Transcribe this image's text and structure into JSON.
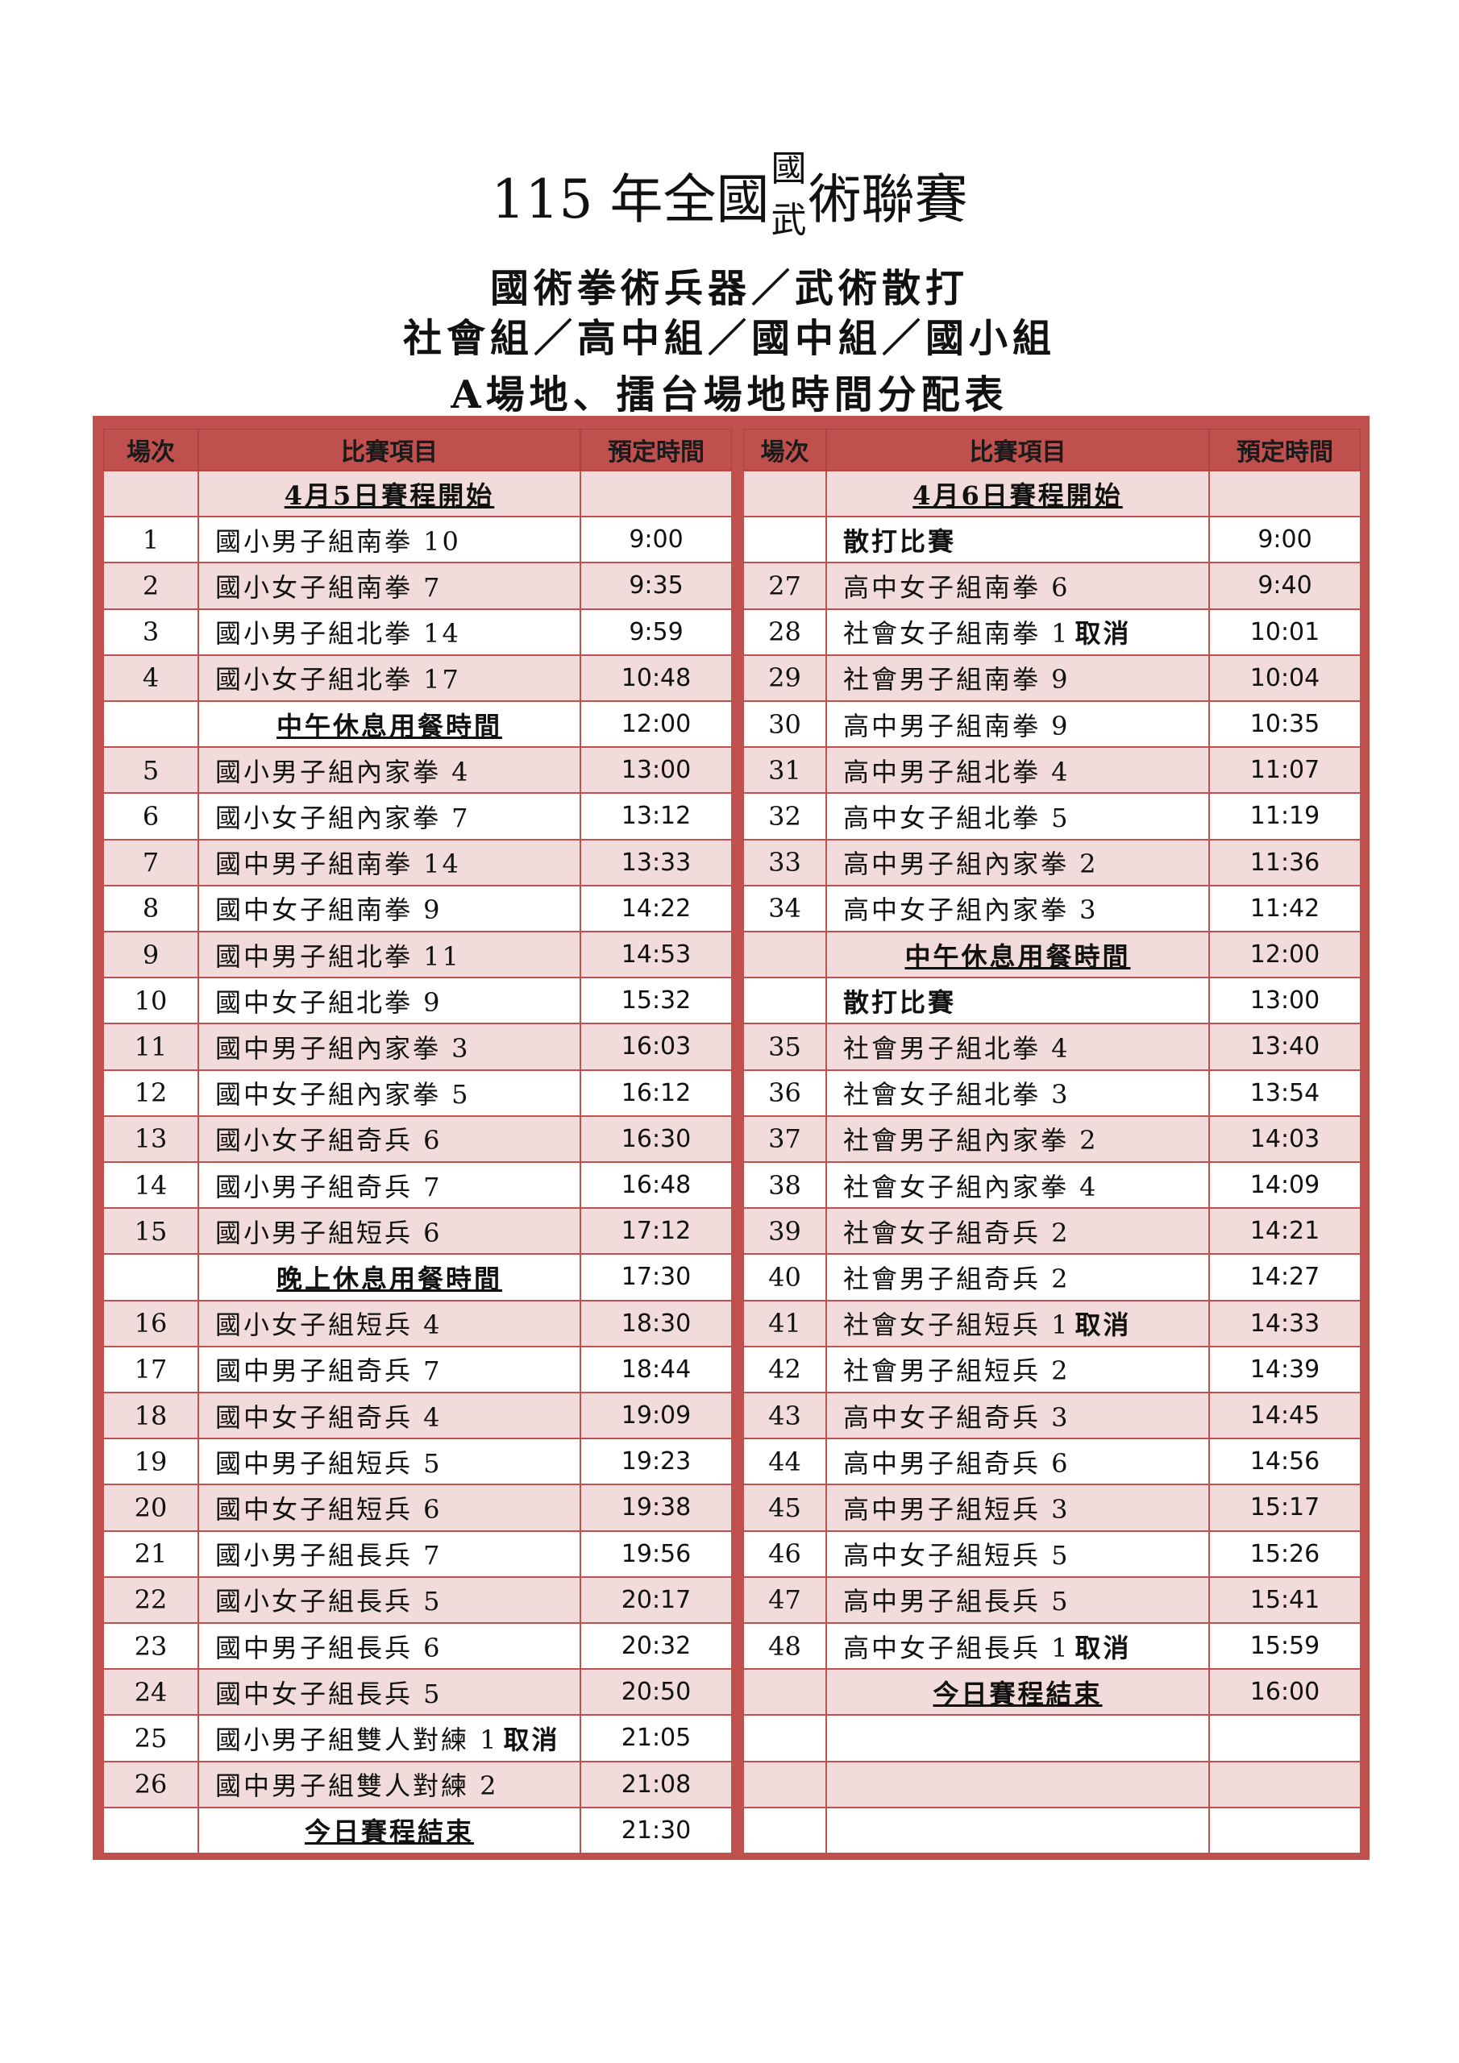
{
  "header": {
    "title": [
      "115 年全國",
      "國",
      "武",
      "術聯賽"
    ],
    "subtitles": [
      "國術拳術兵器／武術散打",
      "社會組／高中組／國中組／國小組",
      "A場地、擂台場地時間分配表"
    ]
  },
  "table": {
    "header": [
      "場次",
      "比賽項目",
      "預定時間",
      "場次",
      "比賽項目",
      "預定時間"
    ],
    "rows": [
      [
        null,
        {
          "text": "4月5日賽程開始",
          "style": "section"
        },
        null,
        null,
        {
          "text": "4月6日賽程開始",
          "style": "section"
        },
        null
      ],
      [
        1,
        "國小男子組南拳 10",
        "9:00",
        null,
        {
          "text": "散打比賽",
          "style": "bold"
        },
        "9:00"
      ],
      [
        2,
        "國小女子組南拳 7",
        "9:35",
        27,
        "高中女子組南拳 6",
        "9:40"
      ],
      [
        3,
        "國小男子組北拳 14",
        "9:59",
        28,
        {
          "text": "社會女子組南拳 1",
          "note": "取消"
        },
        "10:01"
      ],
      [
        4,
        "國小女子組北拳 17",
        "10:48",
        29,
        "社會男子組南拳 9",
        "10:04"
      ],
      [
        null,
        {
          "text": "中午休息用餐時間",
          "style": "section"
        },
        "12:00",
        30,
        "高中男子組南拳 9",
        "10:35"
      ],
      [
        5,
        "國小男子組內家拳 4",
        "13:00",
        31,
        "高中男子組北拳 4",
        "11:07"
      ],
      [
        6,
        "國小女子組內家拳 7",
        "13:12",
        32,
        "高中女子組北拳 5",
        "11:19"
      ],
      [
        7,
        "國中男子組南拳 14",
        "13:33",
        33,
        "高中男子組內家拳 2",
        "11:36"
      ],
      [
        8,
        "國中女子組南拳 9",
        "14:22",
        34,
        "高中女子組內家拳 3",
        "11:42"
      ],
      [
        9,
        "國中男子組北拳 11",
        "14:53",
        null,
        {
          "text": "中午休息用餐時間",
          "style": "section"
        },
        "12:00"
      ],
      [
        10,
        "國中女子組北拳 9",
        "15:32",
        null,
        {
          "text": "散打比賽",
          "style": "bold"
        },
        "13:00"
      ],
      [
        11,
        "國中男子組內家拳 3",
        "16:03",
        35,
        "社會男子組北拳 4",
        "13:40"
      ],
      [
        12,
        "國中女子組內家拳 5",
        "16:12",
        36,
        "社會女子組北拳 3",
        "13:54"
      ],
      [
        13,
        "國小女子組奇兵 6",
        "16:30",
        37,
        "社會男子組內家拳 2",
        "14:03"
      ],
      [
        14,
        "國小男子組奇兵 7",
        "16:48",
        38,
        "社會女子組內家拳 4",
        "14:09"
      ],
      [
        15,
        "國小男子組短兵 6",
        "17:12",
        39,
        "社會女子組奇兵 2",
        "14:21"
      ],
      [
        null,
        {
          "text": "晚上休息用餐時間",
          "style": "section"
        },
        "17:30",
        40,
        "社會男子組奇兵 2",
        "14:27"
      ],
      [
        16,
        "國小女子組短兵 4",
        "18:30",
        41,
        {
          "text": "社會女子組短兵 1",
          "note": "取消"
        },
        "14:33"
      ],
      [
        17,
        "國中男子組奇兵 7",
        "18:44",
        42,
        "社會男子組短兵 2",
        "14:39"
      ],
      [
        18,
        "國中女子組奇兵 4",
        "19:09",
        43,
        "高中女子組奇兵 3",
        "14:45"
      ],
      [
        19,
        "國中男子組短兵 5",
        "19:23",
        44,
        "高中男子組奇兵 6",
        "14:56"
      ],
      [
        20,
        "國中女子組短兵 6",
        "19:38",
        45,
        "高中男子組短兵 3",
        "15:17"
      ],
      [
        21,
        "國小男子組長兵 7",
        "19:56",
        46,
        "高中女子組短兵 5",
        "15:26"
      ],
      [
        22,
        "國小女子組長兵 5",
        "20:17",
        47,
        "高中男子組長兵 5",
        "15:41"
      ],
      [
        23,
        "國中男子組長兵 6",
        "20:32",
        48,
        {
          "text": "高中女子組長兵 1",
          "note": "取消"
        },
        "15:59"
      ],
      [
        24,
        "國中女子組長兵 5",
        "20:50",
        null,
        {
          "text": "今日賽程結束",
          "style": "section"
        },
        "16:00"
      ],
      [
        25,
        {
          "text": "國小男子組雙人對練 1",
          "note": "取消"
        },
        "21:05",
        null,
        null,
        null
      ],
      [
        26,
        "國中男子組雙人對練 2",
        "21:08",
        null,
        null,
        null
      ],
      [
        null,
        {
          "text": "今日賽程結束",
          "style": "section"
        },
        "21:30",
        null,
        null,
        null
      ]
    ]
  }
}
